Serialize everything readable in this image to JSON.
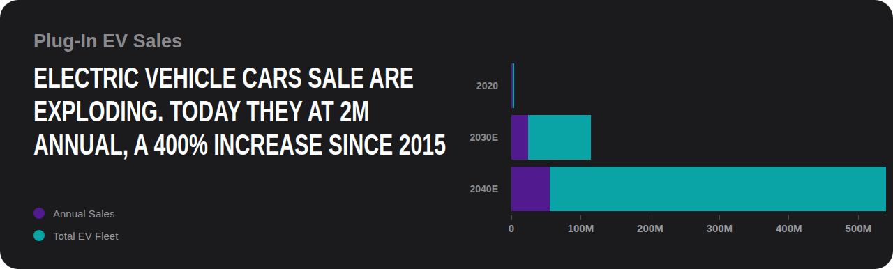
{
  "chart_data": {
    "type": "bar",
    "title": "Plug-In EV Sales",
    "subtitle": "ELECTRIC VEHICLE CARS SALE ARE EXPLODING. TODAY THEY AT 2M ANNUAL, A 400% INCREASE SINCE 2015",
    "orientation": "horizontal",
    "stacked": true,
    "grid": false,
    "categories": [
      "2020",
      "2030E",
      "2040E"
    ],
    "series": [
      {
        "name": "Annual Sales",
        "color": "#521a8f",
        "values": [
          2,
          24,
          55
        ]
      },
      {
        "name": "Total EV Fleet",
        "color": "#0aa3a6",
        "values": [
          2,
          91,
          485
        ]
      }
    ],
    "xlim": [
      0,
      540
    ],
    "xticks": [
      0,
      {
        "value": 100,
        "label": "100M"
      },
      {
        "value": 200,
        "label": "200M"
      },
      {
        "value": 300,
        "label": "300M"
      },
      {
        "value": 400,
        "label": "400M"
      },
      {
        "value": 500,
        "label": "500M"
      }
    ]
  }
}
